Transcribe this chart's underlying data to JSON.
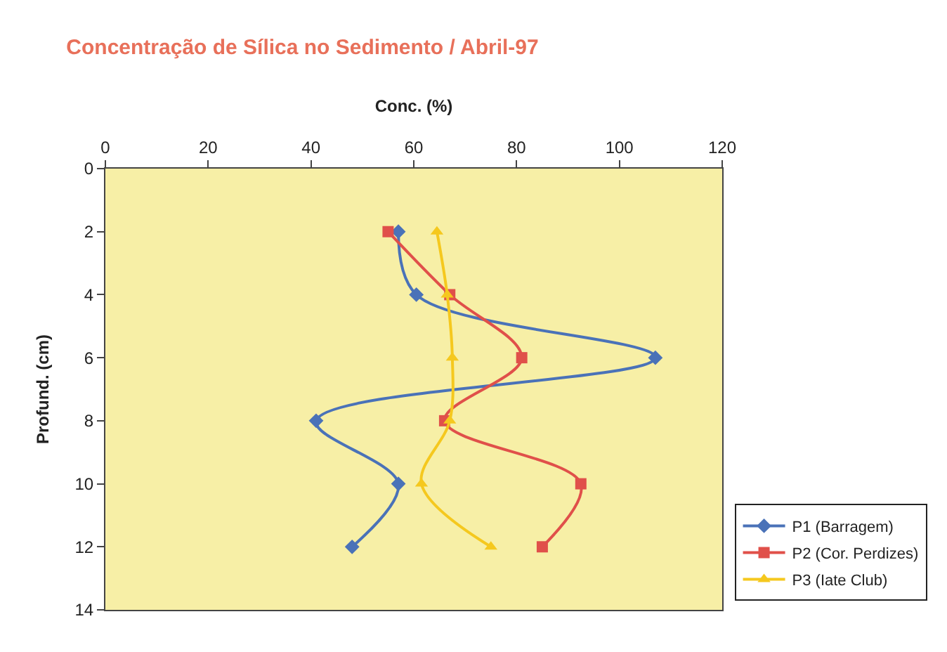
{
  "chart_data": {
    "type": "line",
    "title": "Concentração de Sílica no Sedimento / Abril-97",
    "xlabel": "Conc. (%)",
    "ylabel": "Profund. (cm)",
    "xlim": [
      0,
      120
    ],
    "xticks": [
      0,
      20,
      40,
      60,
      80,
      100,
      120
    ],
    "ylim": [
      14,
      0
    ],
    "yticks": [
      0,
      2,
      4,
      6,
      8,
      10,
      12,
      14
    ],
    "grid": false,
    "legend": "bottom right",
    "series": [
      {
        "name": "P1 (Barragem)",
        "color": "#4a72b8",
        "marker": "diamond",
        "x": [
          57,
          60.5,
          107,
          41,
          57,
          48
        ],
        "values": [
          2,
          4,
          6,
          8,
          10,
          12
        ]
      },
      {
        "name": "P2 (Cor. Perdizes)",
        "color": "#e0504a",
        "marker": "square",
        "x": [
          55,
          67,
          81,
          66,
          92.5,
          85
        ],
        "values": [
          2,
          4,
          6,
          8,
          10,
          12
        ]
      },
      {
        "name": "P3 (Iate Club)",
        "color": "#f5c81e",
        "marker": "triangle",
        "x": [
          64.5,
          66.5,
          67.5,
          67,
          61.5,
          75
        ],
        "values": [
          2,
          4,
          6,
          8,
          10,
          12
        ]
      }
    ]
  }
}
